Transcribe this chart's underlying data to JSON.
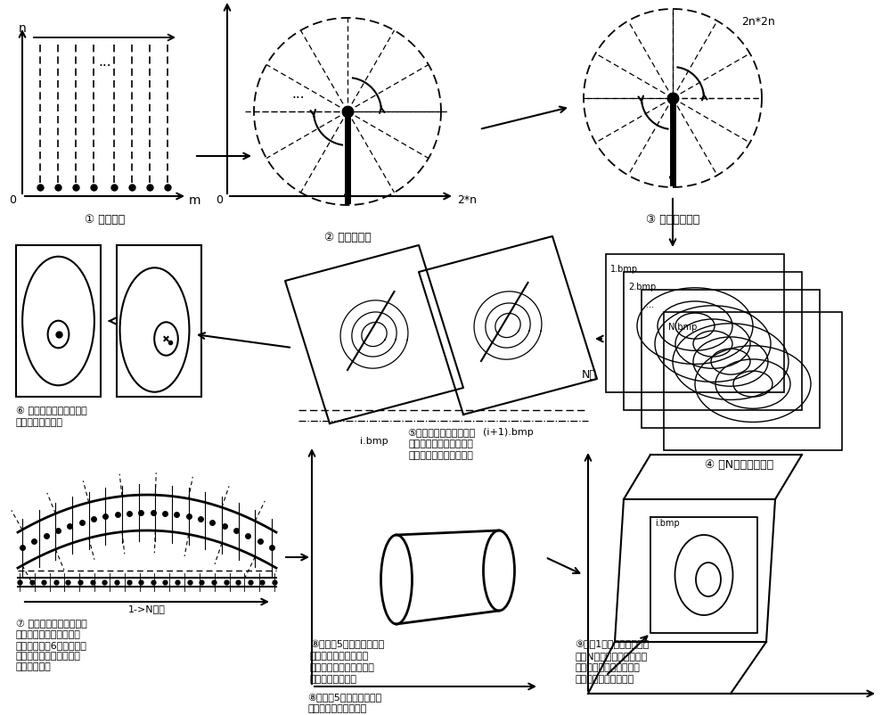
{
  "bg_color": "#ffffff",
  "labels": {
    "step1": "① 原始位图",
    "step2": "② 极坐标转换",
    "step3": "③ 插値后的图像",
    "step4": "④ 将N幅图读入内存",
    "step5_line1": "⑤极坐标变换的起始位和",
    "step5_line2": "终止位有肯能出现不衔接",
    "step5_line3": "的情况，需曲线拟合操作",
    "step6_line1": "⑥ 血管圆心与镜头中心不",
    "step6_line2": "同轴，需平移操作",
    "step7_line1": "⑦ 镜头轨迹垂直于断层扫",
    "step7_line2": "描图像，在内存中展开后",
    "step7_line3": "为直线，若图6做了同轴位",
    "step7_line4": "移操作，则血管是直线型",
    "step7_line5": "的，不会弯曲",
    "step8_line1": "⑧记录图5中线性拟合曲线",
    "step8_line2": "的最大极値所在的第幅",
    "step8_line3": "图，在此处进行切割，得",
    "step8_line4": "到精确的病变位置",
    "step9_line1": "⑨将第1到第幅图（或第幅",
    "step9_line2": "到第N幅）展示到三维空间",
    "step9_line3": "场景，直观的展现病变所",
    "step9_line4": "处位置，以及病变类型"
  }
}
